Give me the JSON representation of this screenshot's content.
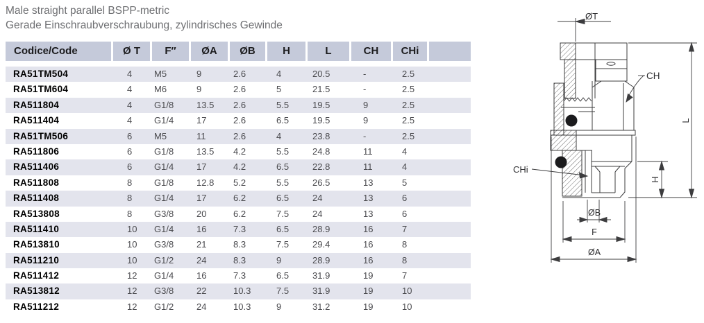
{
  "title": {
    "line1": "Male straight parallel BSPP-metric",
    "line2": "Gerade Einschraubverschraubung, zylindrisches Gewinde"
  },
  "table": {
    "columns": [
      "Codice/Code",
      "Ø T",
      "F″",
      "ØA",
      "ØB",
      "H",
      "L",
      "CH",
      "CHi",
      ""
    ],
    "rows": [
      [
        "RA51TM504",
        "4",
        "M5",
        "9",
        "2.6",
        "4",
        "20.5",
        "-",
        "2.5"
      ],
      [
        "RA51TM604",
        "4",
        "M6",
        "9",
        "2.6",
        "5",
        "21.5",
        "-",
        "2.5"
      ],
      [
        "RA511804",
        "4",
        "G1/8",
        "13.5",
        "2.6",
        "5.5",
        "19.5",
        "9",
        "2.5"
      ],
      [
        "RA511404",
        "4",
        "G1/4",
        "17",
        "2.6",
        "6.5",
        "19.5",
        "9",
        "2.5"
      ],
      [
        "RA51TM506",
        "6",
        "M5",
        "11",
        "2.6",
        "4",
        "23.8",
        "-",
        "2.5"
      ],
      [
        "RA511806",
        "6",
        "G1/8",
        "13.5",
        "4.2",
        "5.5",
        "24.8",
        "11",
        "4"
      ],
      [
        "RA511406",
        "6",
        "G1/4",
        "17",
        "4.2",
        "6.5",
        "22.8",
        "11",
        "4"
      ],
      [
        "RA511808",
        "8",
        "G1/8",
        "12.8",
        "5.2",
        "5.5",
        "26.5",
        "13",
        "5"
      ],
      [
        "RA511408",
        "8",
        "G1/4",
        "17",
        "6.2",
        "6.5",
        "24",
        "13",
        "6"
      ],
      [
        "RA513808",
        "8",
        "G3/8",
        "20",
        "6.2",
        "7.5",
        "24",
        "13",
        "6"
      ],
      [
        "RA511410",
        "10",
        "G1/4",
        "16",
        "7.3",
        "6.5",
        "28.9",
        "16",
        "7"
      ],
      [
        "RA513810",
        "10",
        "G3/8",
        "21",
        "8.3",
        "7.5",
        "29.4",
        "16",
        "8"
      ],
      [
        "RA511210",
        "10",
        "G1/2",
        "24",
        "8.3",
        "9",
        "28.9",
        "16",
        "8"
      ],
      [
        "RA511412",
        "12",
        "G1/4",
        "16",
        "7.3",
        "6.5",
        "31.9",
        "19",
        "7"
      ],
      [
        "RA513812",
        "12",
        "G3/8",
        "22",
        "10.3",
        "7.5",
        "31.9",
        "19",
        "10"
      ],
      [
        "RA511212",
        "12",
        "G1/2",
        "24",
        "10.3",
        "9",
        "31.2",
        "19",
        "10"
      ]
    ]
  },
  "diagram": {
    "labels": {
      "ot": "ØT",
      "ch": "CH",
      "chi": "CHi",
      "l": "L",
      "h": "H",
      "ob": "ØB",
      "f": "F",
      "oa": "ØA"
    }
  },
  "colors": {
    "header_bg": "#c5cada",
    "stripe_bg": "#e3e4ed",
    "title_text": "#6e6f72"
  }
}
